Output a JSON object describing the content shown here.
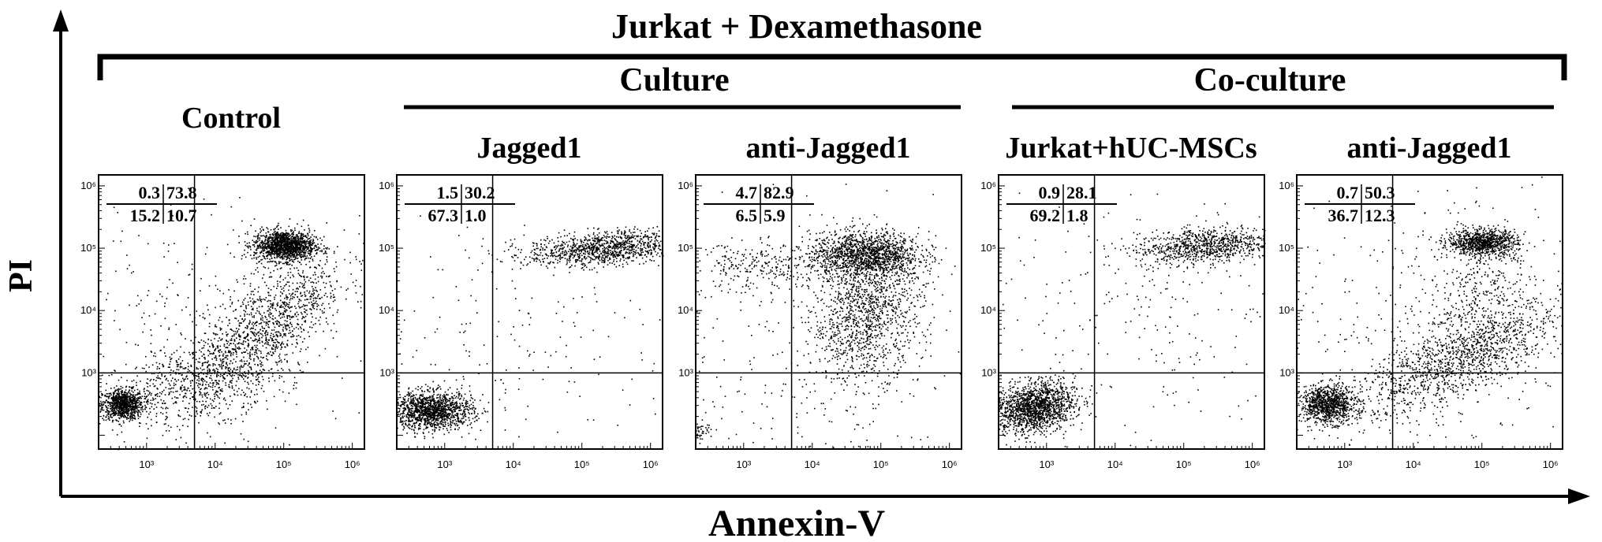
{
  "figure": {
    "main_title": "Jurkat + Dexamethasone",
    "culture_label": "Culture",
    "coculture_label": "Co-culture",
    "y_axis_label": "PI",
    "x_axis_label": "Annexin-V"
  },
  "chart_data": [
    {
      "type": "scatter",
      "title": "Control",
      "group": "",
      "x_scale": "log",
      "y_scale": "log",
      "xlim": [
        200,
        1500000
      ],
      "ylim": [
        60,
        1500000
      ],
      "x_ticks": [
        "10³",
        "10⁴",
        "10⁵",
        "10⁶"
      ],
      "y_ticks": [
        "10³",
        "10⁴",
        "10⁵",
        "10⁶"
      ],
      "x_gate": 5000,
      "y_gate": 1000,
      "quadrants": {
        "upper_left": "0.3",
        "upper_right": "73.8",
        "lower_left": "15.2",
        "lower_right": "10.7"
      }
    },
    {
      "type": "scatter",
      "title": "Jagged1",
      "group": "Culture",
      "x_scale": "log",
      "y_scale": "log",
      "xlim": [
        200,
        1500000
      ],
      "ylim": [
        60,
        1500000
      ],
      "x_ticks": [
        "10³",
        "10⁴",
        "10⁵",
        "10⁶"
      ],
      "y_ticks": [
        "10³",
        "10⁴",
        "10⁵",
        "10⁶"
      ],
      "x_gate": 5000,
      "y_gate": 1000,
      "quadrants": {
        "upper_left": "1.5",
        "upper_right": "30.2",
        "lower_left": "67.3",
        "lower_right": "1.0"
      }
    },
    {
      "type": "scatter",
      "title": "anti-Jagged1",
      "group": "Culture",
      "x_scale": "log",
      "y_scale": "log",
      "xlim": [
        200,
        1500000
      ],
      "ylim": [
        60,
        1500000
      ],
      "x_ticks": [
        "10³",
        "10⁴",
        "10⁵",
        "10⁶"
      ],
      "y_ticks": [
        "10³",
        "10⁴",
        "10⁵",
        "10⁶"
      ],
      "x_gate": 5000,
      "y_gate": 1000,
      "quadrants": {
        "upper_left": "4.7",
        "upper_right": "82.9",
        "lower_left": "6.5",
        "lower_right": "5.9"
      }
    },
    {
      "type": "scatter",
      "title": "Jurkat+hUC-MSCs",
      "group": "Co-culture",
      "x_scale": "log",
      "y_scale": "log",
      "xlim": [
        200,
        1500000
      ],
      "ylim": [
        60,
        1500000
      ],
      "x_ticks": [
        "10³",
        "10⁴",
        "10⁵",
        "10⁶"
      ],
      "y_ticks": [
        "10³",
        "10⁴",
        "10⁵",
        "10⁶"
      ],
      "x_gate": 5000,
      "y_gate": 1000,
      "quadrants": {
        "upper_left": "0.9",
        "upper_right": "28.1",
        "lower_left": "69.2",
        "lower_right": "1.8"
      }
    },
    {
      "type": "scatter",
      "title": "anti-Jagged1",
      "group": "Co-culture",
      "x_scale": "log",
      "y_scale": "log",
      "xlim": [
        200,
        1500000
      ],
      "ylim": [
        60,
        1500000
      ],
      "x_ticks": [
        "10³",
        "10⁴",
        "10⁵",
        "10⁶"
      ],
      "y_ticks": [
        "10³",
        "10⁴",
        "10⁵",
        "10⁶"
      ],
      "x_gate": 5000,
      "y_gate": 1000,
      "quadrants": {
        "upper_left": "0.7",
        "upper_right": "50.3",
        "lower_left": "36.7",
        "lower_right": "12.3"
      }
    }
  ]
}
